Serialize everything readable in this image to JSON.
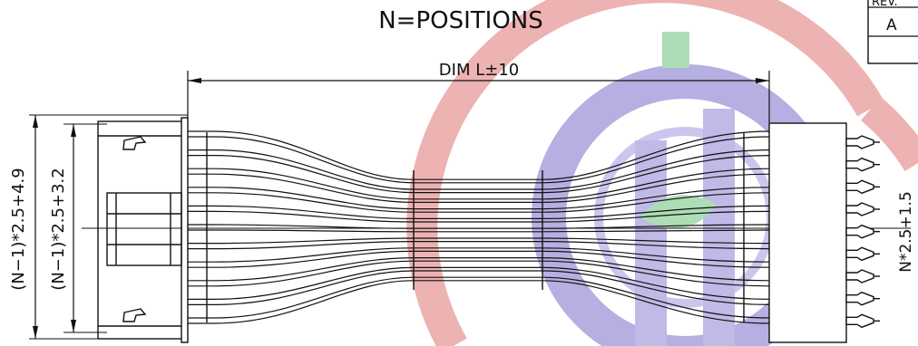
{
  "drawing": {
    "title": "N=POSITIONS",
    "length_dimension": "DIM L±10",
    "height_outer_dimension": "(N−1)*2.5+4.9",
    "height_inner_dimension": "(N−1)*2.5+3.2",
    "pitch_dimension": "N*2.5+1.5",
    "revision_table": {
      "header": "REV.",
      "value": "A"
    }
  },
  "watermark": {
    "colors": [
      "#e9a6a6",
      "#a9a1dc",
      "#9fd8aa"
    ]
  },
  "cable": {
    "wire_count": 11,
    "terminal_count": 9
  }
}
